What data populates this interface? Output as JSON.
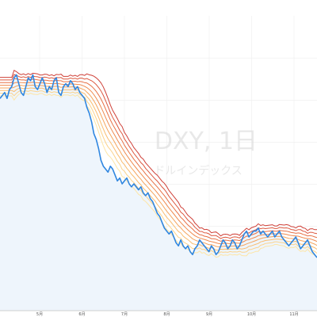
{
  "watermark": {
    "title": "DXY, 1日",
    "subtitle": "ドルインデックス"
  },
  "colors": {
    "background": "#ffffff",
    "area_fill": "#eef5fc",
    "price_line": "#2f86e0",
    "grid": "#eeeeee",
    "axis": "#cfcfcf",
    "ribbon": [
      "#fde5a6",
      "#fbd28a",
      "#f9bc6f",
      "#f5a45d",
      "#ef8a4f",
      "#e77045",
      "#dc573f",
      "#cf4038"
    ]
  },
  "chart_data": {
    "type": "line",
    "xlabel": "",
    "ylabel": "",
    "title": "",
    "grid": true,
    "x_tick_labels": [
      "5月",
      "6月",
      "7月",
      "8月",
      "9月",
      "10月",
      "11月"
    ],
    "y_range": [
      0,
      100
    ],
    "series": [
      {
        "values": [
          72,
          73,
          74,
          72,
          75,
          76,
          79,
          80,
          77,
          74,
          73,
          76,
          79,
          78,
          80,
          76,
          75,
          77,
          79,
          77,
          74,
          76,
          75,
          78,
          79,
          74,
          73,
          76,
          77,
          76,
          78,
          77,
          75,
          76,
          74,
          73,
          72,
          69,
          67,
          64,
          60,
          58,
          55,
          51,
          49,
          48,
          47,
          49,
          48,
          46,
          44,
          45,
          43,
          44,
          45,
          43,
          42,
          43,
          42,
          41,
          42,
          40,
          39,
          40,
          38,
          37,
          35,
          33,
          32,
          30,
          28,
          27,
          26,
          27,
          25,
          23,
          22,
          24,
          22,
          21,
          22,
          20,
          19,
          21,
          22,
          24,
          23,
          22,
          21,
          20,
          22,
          21,
          19,
          20,
          22,
          24,
          23,
          21,
          22,
          24,
          23,
          21,
          22,
          24,
          26,
          27,
          25,
          26,
          27,
          27,
          28,
          26,
          27,
          26,
          25,
          26,
          27,
          25,
          26,
          27,
          25,
          24,
          23,
          22,
          23,
          24,
          25,
          23,
          21,
          22,
          23,
          24,
          22,
          20,
          19,
          18
        ]
      },
      {
        "values": [
          76,
          76,
          76,
          76,
          76,
          76,
          76.5,
          76.8,
          76.9,
          76.9,
          76.8,
          76.8,
          76.9,
          76.9,
          77,
          76.9,
          76.8,
          76.8,
          76.8,
          76.7,
          76.6,
          76.6,
          76.5,
          76.5,
          76.6,
          76.5,
          76.3,
          76.3,
          76.3,
          76.3,
          76.4,
          76.4,
          76.3,
          76.3,
          76.1,
          75.8,
          75.5,
          74.9,
          74.2,
          73.3,
          72.2,
          70.9,
          69.4,
          67.7,
          65.9,
          64.1,
          62.4,
          60.9,
          59.5,
          58.1,
          56.7,
          55.4,
          54,
          52.8,
          51.6,
          50.5,
          49.4,
          48.4,
          47.4,
          46.4,
          45.5,
          44.5,
          43.6,
          42.7,
          41.8,
          40.9,
          40,
          39,
          38,
          37,
          35.9,
          34.8,
          33.8,
          32.8,
          31.8,
          30.8,
          29.8,
          29,
          28.1,
          27.3,
          26.6,
          25.9,
          25.2,
          24.7,
          24.3,
          24.1,
          23.8,
          23.6,
          23.3,
          23,
          22.9,
          22.7,
          22.4,
          22.2,
          22.2,
          22.3,
          22.4,
          22.3,
          22.3,
          22.4,
          22.5,
          22.4,
          22.4,
          22.6,
          22.9,
          23.3,
          23.5,
          23.8,
          24.1,
          24.4,
          24.8,
          25,
          25.2,
          25.3,
          25.4,
          25.5,
          25.6,
          25.6,
          25.6,
          25.7,
          25.6,
          25.5,
          25.3,
          25.1,
          25,
          24.9,
          24.9,
          24.7,
          24.4,
          24.2,
          24,
          24,
          23.8,
          23.5,
          23.2,
          22.8
        ]
      }
    ]
  }
}
